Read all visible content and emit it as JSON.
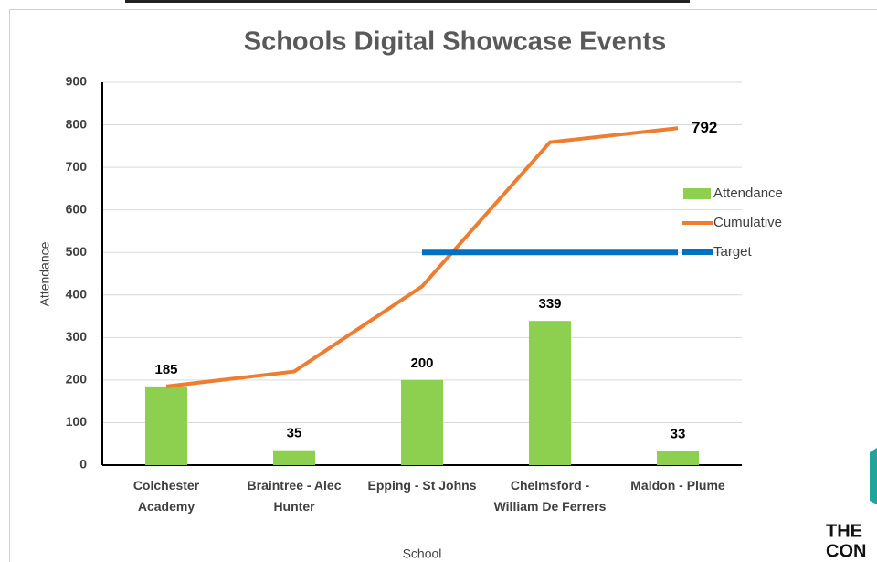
{
  "chart_data": {
    "type": "combo",
    "title": "Schools Digital Showcase Events",
    "x_label": "School",
    "y_label": "Attendance",
    "categories": [
      "Colchester Academy",
      "Braintree - Alec Hunter",
      "Epping - St Johns",
      "Chelmsford - William De Ferrers",
      "Maldon - Plume"
    ],
    "series": [
      {
        "name": "Attendance",
        "type": "bar",
        "color": "#8dd04f",
        "values": [
          185,
          35,
          200,
          339,
          33
        ],
        "data_labels": true
      },
      {
        "name": "Cumulative",
        "type": "line",
        "color": "#ed7d31",
        "values": [
          185,
          220,
          420,
          759,
          792
        ],
        "value_labels": [
          null,
          null,
          null,
          null,
          "792"
        ]
      },
      {
        "name": "Target",
        "type": "line",
        "color": "#0070c0",
        "values": [
          null,
          null,
          500,
          500,
          500
        ]
      }
    ],
    "ylim": [
      0,
      900
    ],
    "yticks": [
      0,
      100,
      200,
      300,
      400,
      500,
      600,
      700,
      800,
      900
    ],
    "grid": true
  },
  "logo": {
    "lines": [
      "THE",
      "CON"
    ]
  }
}
